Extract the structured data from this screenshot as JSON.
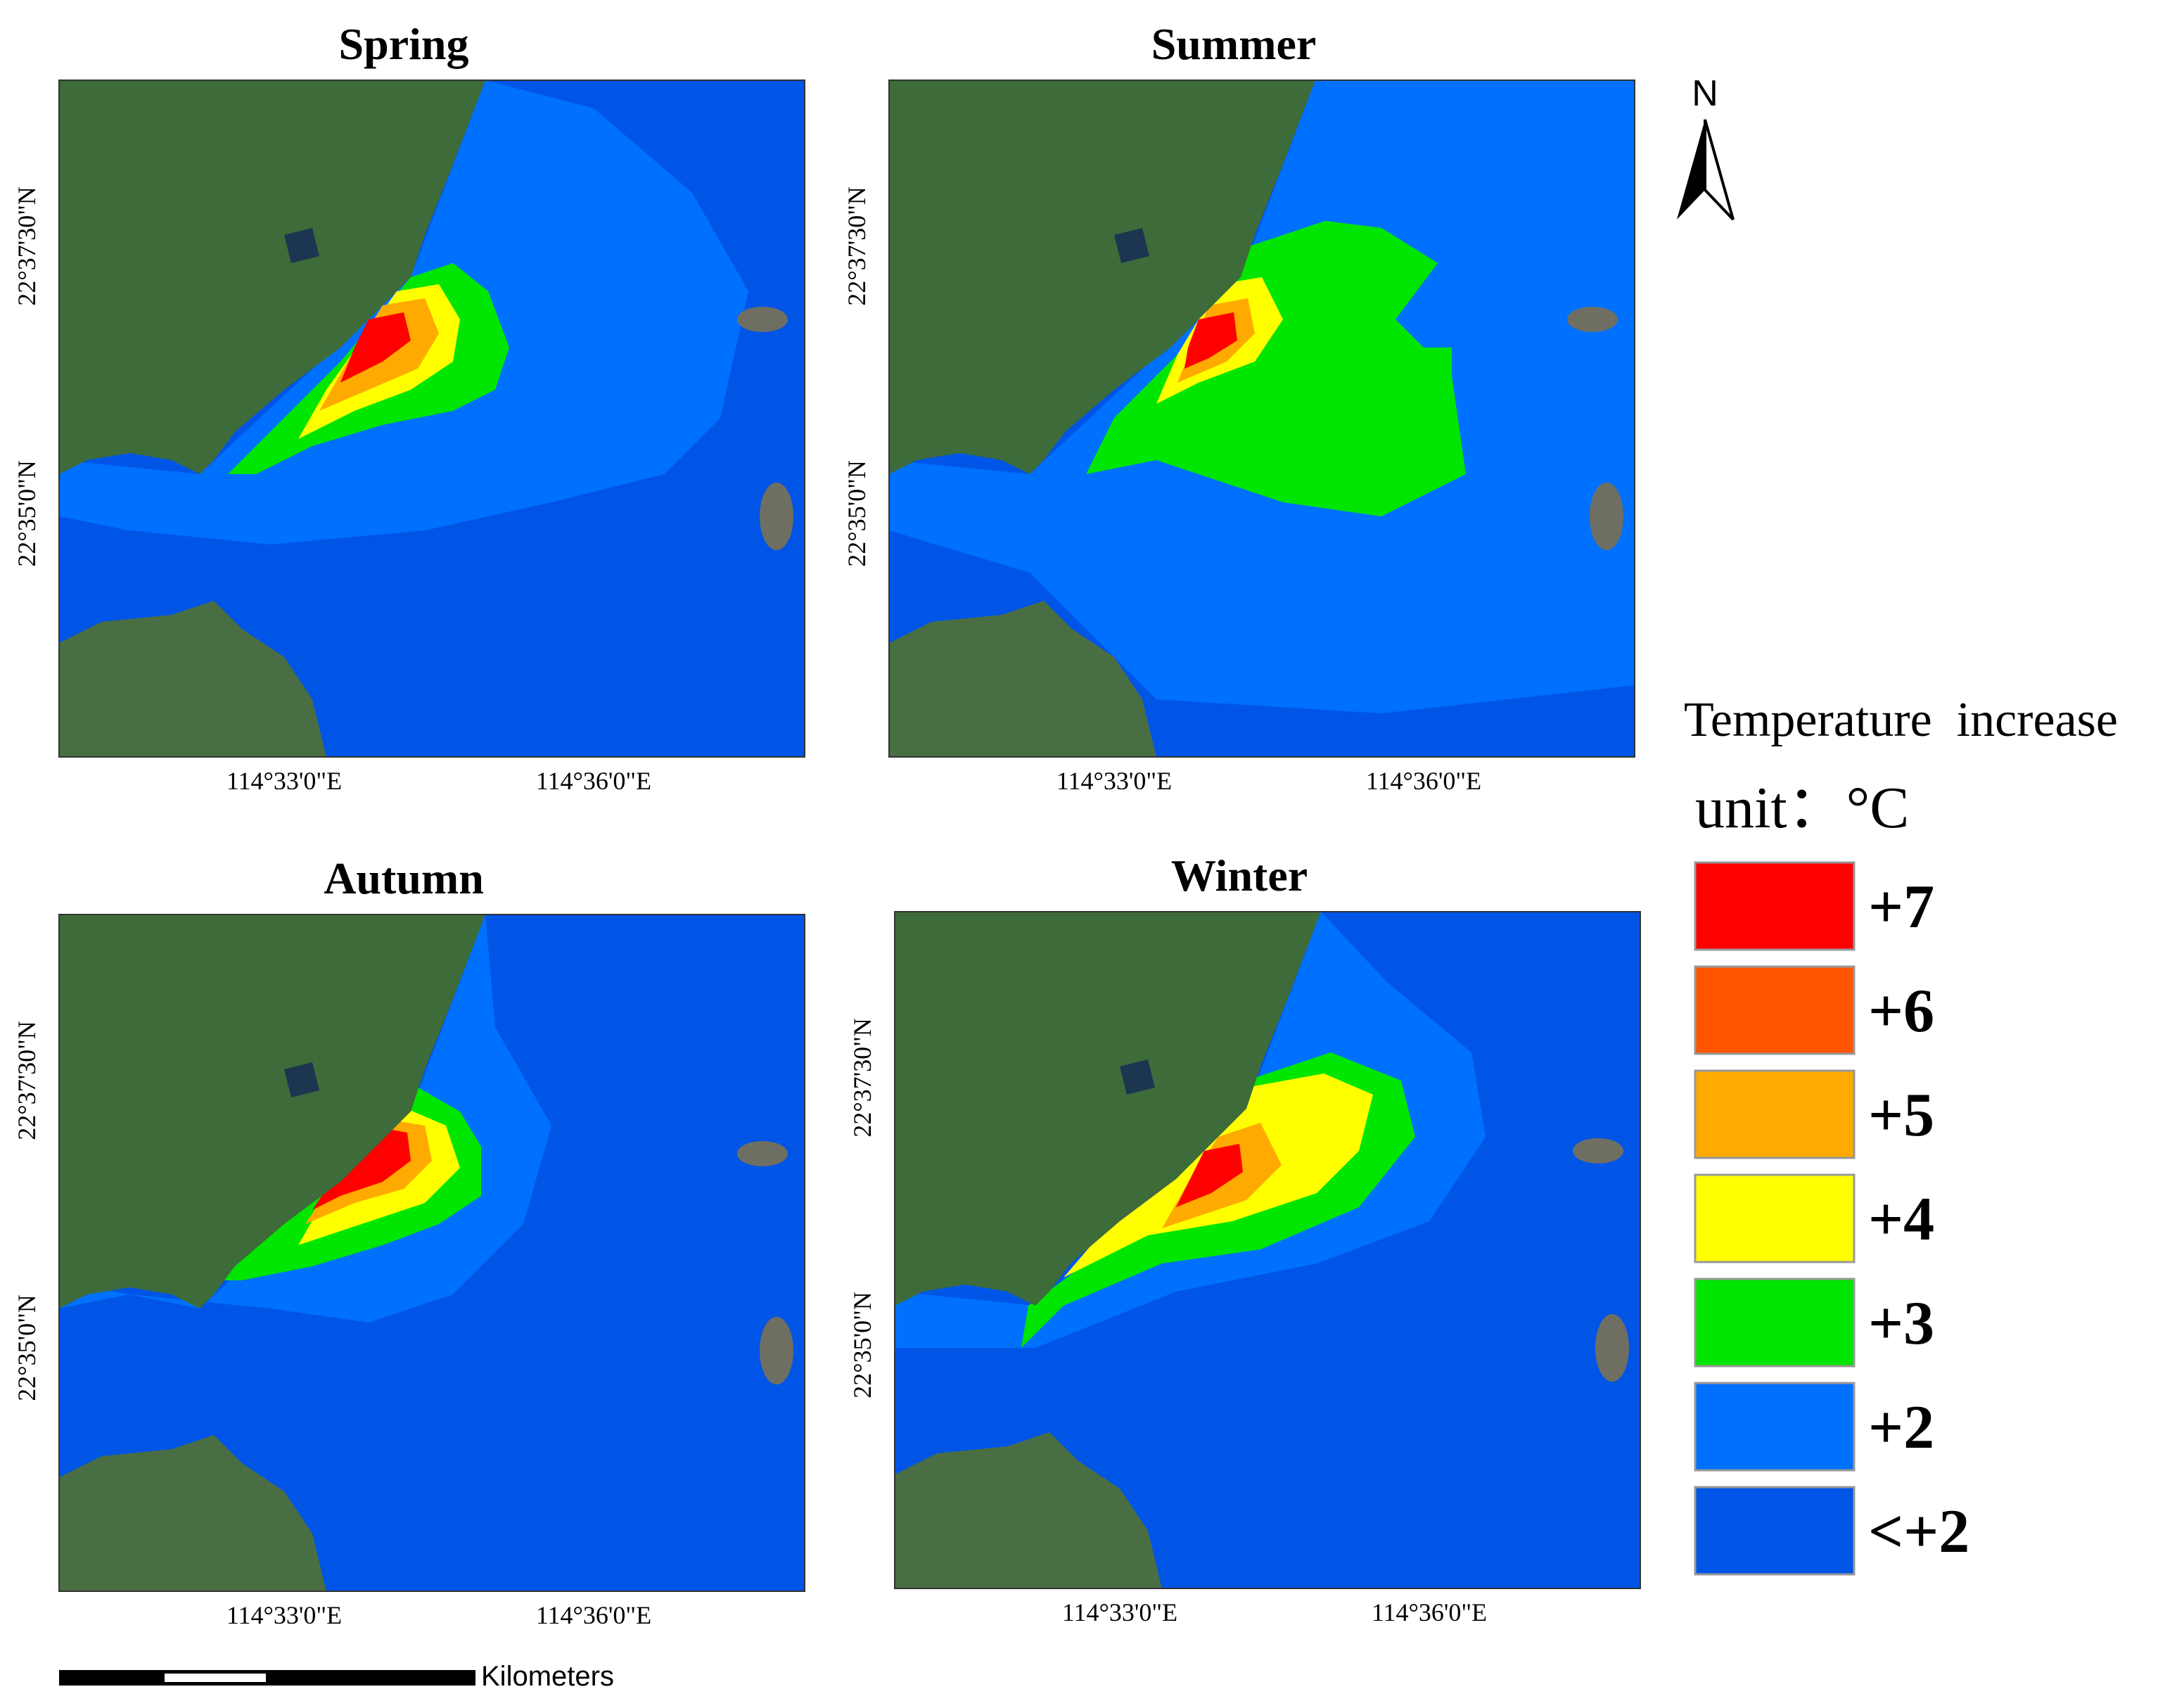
{
  "panels": [
    {
      "title": "Spring",
      "x_labels": [
        "114°33'0\"E",
        "114°36'0\"E"
      ],
      "y_labels": [
        "22°37'30\"N",
        "22°35'0\"N"
      ]
    },
    {
      "title": "Summer",
      "x_labels": [
        "114°33'0\"E",
        "114°36'0\"E"
      ],
      "y_labels": [
        "22°37'30\"N",
        "22°35'0\"N"
      ]
    },
    {
      "title": "Autumn",
      "x_labels": [
        "114°33'0\"E",
        "114°36'0\"E"
      ],
      "y_labels": [
        "22°37'30\"N",
        "22°35'0\"N"
      ]
    },
    {
      "title": "Winter",
      "x_labels": [
        "114°33'0\"E",
        "114°36'0\"E"
      ],
      "y_labels": [
        "22°37'30\"N",
        "22°35'0\"N"
      ]
    }
  ],
  "legend": {
    "title": "Temperature  increase",
    "unit": "unit：°C",
    "items": [
      {
        "label": "+7",
        "color": "#ff0000"
      },
      {
        "label": "+6",
        "color": "#ff5500"
      },
      {
        "label": "+5",
        "color": "#ffaa00"
      },
      {
        "label": "+4",
        "color": "#ffff00"
      },
      {
        "label": "+3",
        "color": "#00e600"
      },
      {
        "label": "+2",
        "color": "#0070ff"
      },
      {
        "label": "<+2",
        "color": "#0055e6"
      }
    ]
  },
  "scale_bar": {
    "label": "Kilometers"
  },
  "north_arrow": {
    "label": "N"
  }
}
